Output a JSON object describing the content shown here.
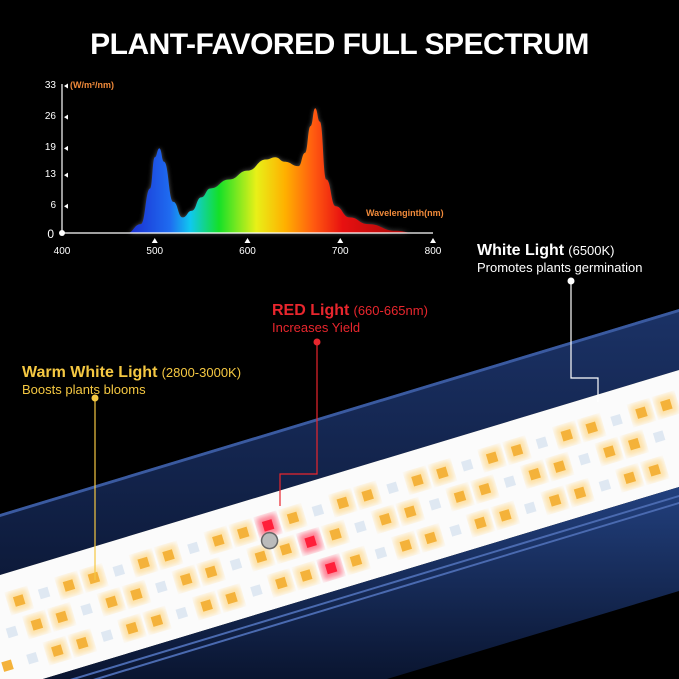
{
  "title": "PLANT-FAVORED FULL SPECTRUM",
  "callouts": {
    "warm": {
      "label": "Warm White Light",
      "range": "(2800-3000K)",
      "desc": "Boosts plants blooms",
      "color": "#f5c842"
    },
    "red": {
      "label": "RED Light",
      "range": "(660-665nm)",
      "desc": "Increases Yield",
      "color": "#e8262d"
    },
    "white": {
      "label": "White Light",
      "range": "(6500K)",
      "desc": "Promotes plants germination",
      "color": "#ffffff"
    }
  },
  "chart_data": {
    "type": "area",
    "title": "",
    "xlabel": "Wavelenginth(nm)",
    "ylabel": "(W/m²/nm)",
    "xlim": [
      400,
      800
    ],
    "ylim": [
      0,
      33
    ],
    "x_ticks": [
      "400",
      "500",
      "600",
      "700",
      "800"
    ],
    "y_ticks": [
      "0",
      "6",
      "13",
      "19",
      "26",
      "33"
    ],
    "grid": false,
    "fill": "spectral-gradient",
    "x": [
      470,
      485,
      495,
      500,
      505,
      510,
      520,
      530,
      540,
      550,
      560,
      580,
      600,
      620,
      630,
      640,
      655,
      662,
      668,
      673,
      678,
      685,
      695,
      710,
      730,
      760,
      780
    ],
    "y": [
      0,
      2,
      10,
      17,
      19,
      16,
      7,
      3.5,
      5,
      8,
      10,
      12,
      14,
      16.5,
      17,
      16,
      15,
      18,
      24,
      28,
      25,
      12,
      6,
      3.5,
      2,
      0.5,
      0
    ]
  }
}
